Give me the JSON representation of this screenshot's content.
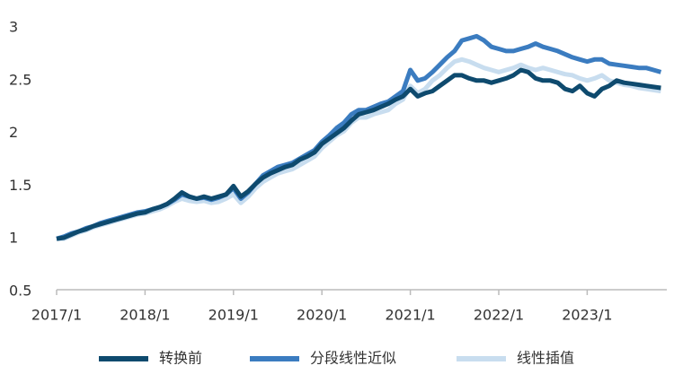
{
  "chart_data": {
    "type": "line",
    "categories": [
      "2017/1",
      null,
      null,
      null,
      null,
      null,
      null,
      null,
      null,
      null,
      null,
      null,
      "2018/1",
      null,
      null,
      null,
      null,
      null,
      null,
      null,
      null,
      null,
      null,
      null,
      "2019/1",
      null,
      null,
      null,
      null,
      null,
      null,
      null,
      null,
      null,
      null,
      null,
      "2020/1",
      null,
      null,
      null,
      null,
      null,
      null,
      null,
      null,
      null,
      null,
      null,
      "2021/1",
      null,
      null,
      null,
      null,
      null,
      null,
      null,
      null,
      null,
      null,
      null,
      "2022/1",
      null,
      null,
      null,
      null,
      null,
      null,
      null,
      null,
      null,
      null,
      null,
      "2023/1",
      null,
      null,
      null,
      null,
      null,
      null,
      null,
      null,
      null,
      null
    ],
    "series": [
      {
        "name": "转换前",
        "color": "#0e4a6e",
        "values": [
          1.0,
          1.01,
          1.04,
          1.07,
          1.09,
          1.12,
          1.14,
          1.16,
          1.18,
          1.2,
          1.22,
          1.24,
          1.25,
          1.28,
          1.3,
          1.33,
          1.38,
          1.44,
          1.4,
          1.38,
          1.4,
          1.38,
          1.4,
          1.42,
          1.5,
          1.4,
          1.45,
          1.52,
          1.58,
          1.62,
          1.65,
          1.68,
          1.7,
          1.75,
          1.78,
          1.82,
          1.9,
          1.95,
          2.0,
          2.05,
          2.12,
          2.18,
          2.2,
          2.22,
          2.25,
          2.28,
          2.32,
          2.35,
          2.42,
          2.35,
          2.38,
          2.4,
          2.45,
          2.5,
          2.55,
          2.55,
          2.52,
          2.5,
          2.5,
          2.48,
          2.5,
          2.52,
          2.55,
          2.6,
          2.58,
          2.52,
          2.5,
          2.5,
          2.48,
          2.42,
          2.4,
          2.45,
          2.38,
          2.35,
          2.42,
          2.45,
          2.5,
          2.48,
          2.47,
          2.46,
          2.45,
          2.44,
          2.43
        ]
      },
      {
        "name": "分段线性近似",
        "color": "#3b7cc0",
        "values": [
          1.0,
          1.02,
          1.05,
          1.07,
          1.1,
          1.12,
          1.15,
          1.17,
          1.19,
          1.21,
          1.23,
          1.25,
          1.26,
          1.28,
          1.3,
          1.33,
          1.37,
          1.42,
          1.4,
          1.38,
          1.39,
          1.37,
          1.39,
          1.42,
          1.48,
          1.38,
          1.44,
          1.52,
          1.6,
          1.64,
          1.68,
          1.7,
          1.72,
          1.76,
          1.8,
          1.84,
          1.92,
          1.98,
          2.05,
          2.1,
          2.18,
          2.22,
          2.22,
          2.25,
          2.28,
          2.3,
          2.35,
          2.4,
          2.6,
          2.5,
          2.52,
          2.58,
          2.65,
          2.72,
          2.78,
          2.88,
          2.9,
          2.92,
          2.88,
          2.82,
          2.8,
          2.78,
          2.78,
          2.8,
          2.82,
          2.85,
          2.82,
          2.8,
          2.78,
          2.75,
          2.72,
          2.7,
          2.68,
          2.7,
          2.7,
          2.66,
          2.65,
          2.64,
          2.63,
          2.62,
          2.62,
          2.6,
          2.58
        ]
      },
      {
        "name": "线性插值",
        "color": "#c8ddef",
        "values": [
          1.0,
          1.0,
          1.03,
          1.06,
          1.08,
          1.11,
          1.13,
          1.15,
          1.17,
          1.19,
          1.21,
          1.23,
          1.24,
          1.26,
          1.28,
          1.31,
          1.35,
          1.38,
          1.36,
          1.35,
          1.36,
          1.34,
          1.35,
          1.38,
          1.42,
          1.34,
          1.4,
          1.48,
          1.54,
          1.58,
          1.62,
          1.64,
          1.66,
          1.7,
          1.74,
          1.78,
          1.86,
          1.92,
          1.98,
          2.02,
          2.1,
          2.15,
          2.15,
          2.18,
          2.2,
          2.22,
          2.28,
          2.32,
          2.45,
          2.38,
          2.42,
          2.5,
          2.55,
          2.62,
          2.68,
          2.7,
          2.68,
          2.65,
          2.62,
          2.6,
          2.58,
          2.6,
          2.62,
          2.65,
          2.62,
          2.6,
          2.62,
          2.6,
          2.58,
          2.56,
          2.55,
          2.52,
          2.5,
          2.52,
          2.55,
          2.5,
          2.48,
          2.46,
          2.45,
          2.43,
          2.42,
          2.41,
          2.4
        ]
      }
    ],
    "ylim": [
      0.5,
      3
    ],
    "yticks": [
      0.5,
      1,
      1.5,
      2,
      2.5,
      3
    ],
    "grid": false,
    "legend": "bottom"
  }
}
